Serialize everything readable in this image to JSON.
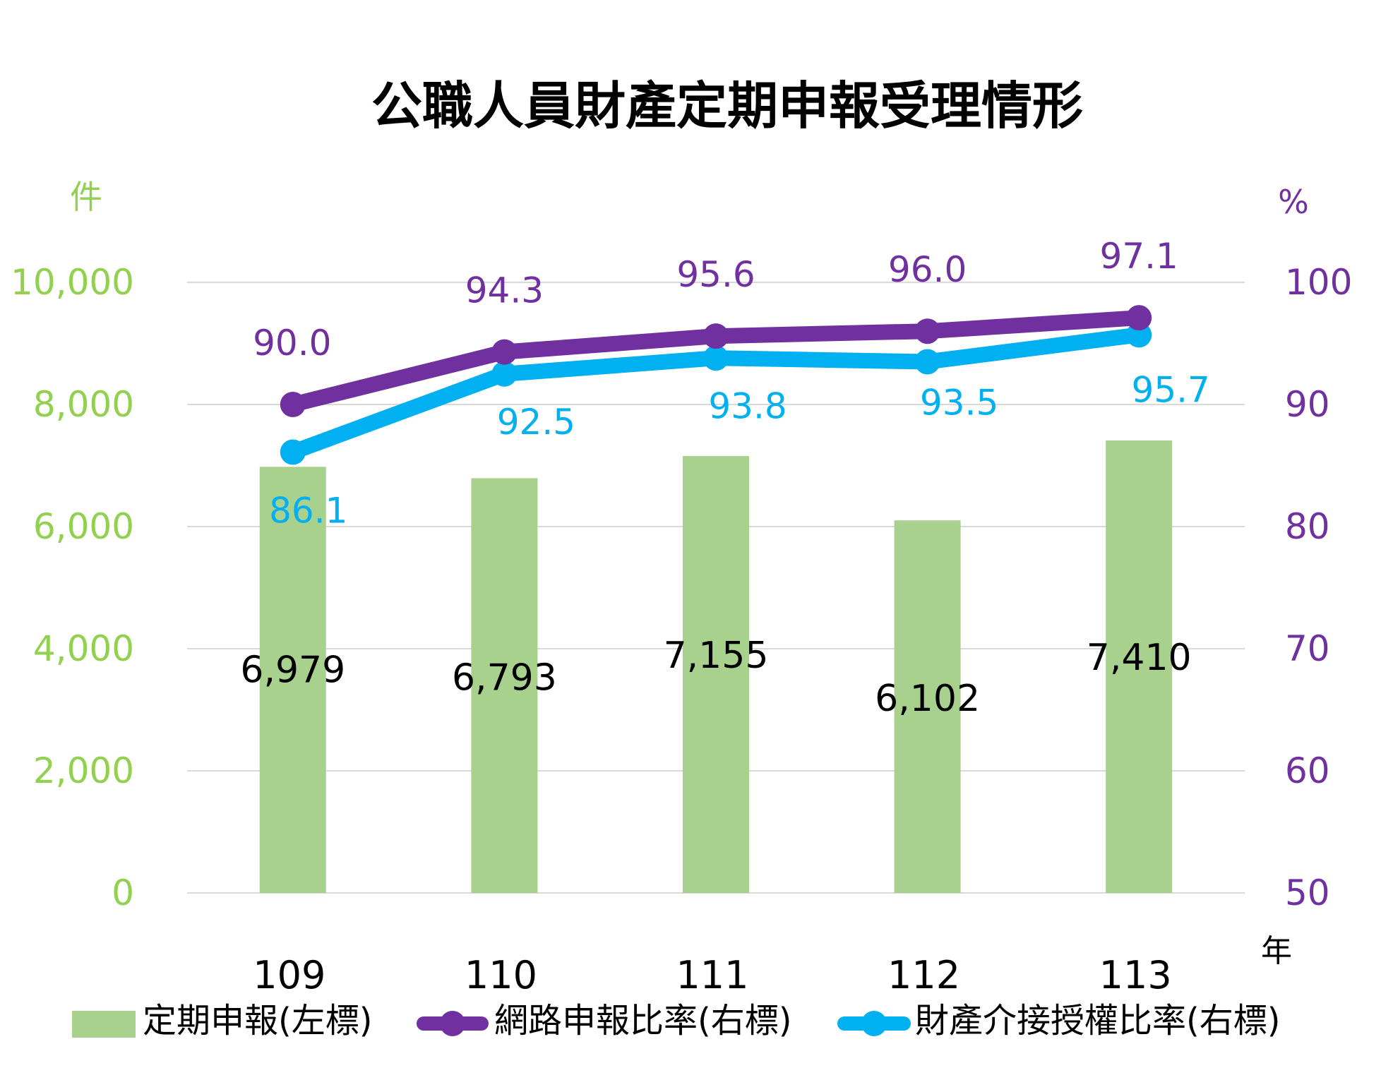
{
  "chart_data": {
    "type": "bar",
    "title": "公職人員財產定期申報受理情形",
    "left_axis_unit": "件",
    "right_axis_unit": "%",
    "x_unit": "年",
    "categories": [
      "109",
      "110",
      "111",
      "112",
      "113"
    ],
    "left_axis": {
      "ylim": [
        0,
        10000
      ],
      "ticks": [
        "0",
        "2,000",
        "4,000",
        "6,000",
        "8,000",
        "10,000"
      ],
      "tick_values": [
        0,
        2000,
        4000,
        6000,
        8000,
        10000
      ]
    },
    "right_axis": {
      "ylim": [
        50,
        100
      ],
      "ticks": [
        "50",
        "60",
        "70",
        "80",
        "90",
        "100"
      ],
      "tick_values": [
        50,
        60,
        70,
        80,
        90,
        100
      ]
    },
    "grid": true,
    "legend_placement": "bottom",
    "series": [
      {
        "name": "定期申報(左標)",
        "kind": "bar",
        "axis": "left",
        "color": "#a9d18e",
        "values": [
          6979,
          6793,
          7155,
          6102,
          7410
        ],
        "labels": [
          "6,979",
          "6,793",
          "7,155",
          "6,102",
          "7,410"
        ]
      },
      {
        "name": "網路申報比率(右標)",
        "kind": "line",
        "axis": "right",
        "color": "#7030a0",
        "values": [
          90.0,
          94.3,
          95.6,
          96.0,
          97.1
        ],
        "labels": [
          "90.0",
          "94.3",
          "95.6",
          "96.0",
          "97.1"
        ]
      },
      {
        "name": "財產介接授權比率(右標)",
        "kind": "line",
        "axis": "right",
        "color": "#00b0f0",
        "values": [
          86.1,
          92.5,
          93.8,
          93.5,
          95.7
        ],
        "labels": [
          "86.1",
          "92.5",
          "93.8",
          "93.5",
          "95.7"
        ]
      }
    ],
    "colors": {
      "left_axis": "#92d050",
      "right_axis": "#7030a0",
      "grid": "#d9d9d9"
    }
  }
}
